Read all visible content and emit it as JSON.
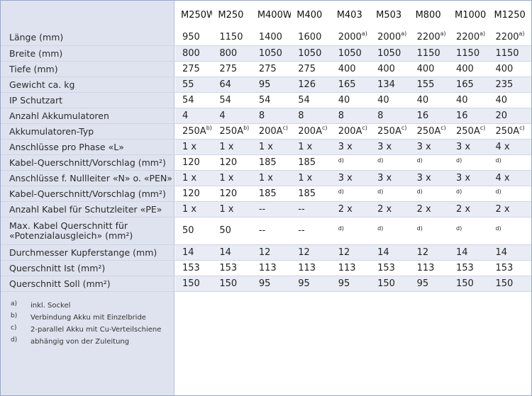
{
  "models": [
    "M250W",
    "M250",
    "M400W",
    "M400",
    "M403",
    "M503",
    "M800",
    "M1000",
    "M1250"
  ],
  "rows": [
    {
      "label": "Länge (mm)",
      "values": [
        "950",
        "1150",
        "1400",
        "1600",
        "2000",
        "2000",
        "2200",
        "2200",
        "2200"
      ],
      "sups": [
        "",
        "",
        "",
        "",
        "a)",
        "a)",
        "a)",
        "a)",
        "a)"
      ]
    },
    {
      "label": "Breite (mm)",
      "values": [
        "800",
        "800",
        "1050",
        "1050",
        "1050",
        "1050",
        "1150",
        "1150",
        "1150"
      ],
      "sups": [
        "",
        "",
        "",
        "",
        "",
        "",
        "",
        "",
        ""
      ]
    },
    {
      "label": "Tiefe (mm)",
      "values": [
        "275",
        "275",
        "275",
        "275",
        "400",
        "400",
        "400",
        "400",
        "400"
      ],
      "sups": [
        "",
        "",
        "",
        "",
        "",
        "",
        "",
        "",
        ""
      ]
    },
    {
      "label": "Gewicht ca. kg",
      "values": [
        "55",
        "64",
        "95",
        "126",
        "165",
        "134",
        "155",
        "165",
        "235"
      ],
      "sups": [
        "",
        "",
        "",
        "",
        "",
        "",
        "",
        "",
        ""
      ]
    },
    {
      "label": "IP Schutzart",
      "values": [
        "54",
        "54",
        "54",
        "54",
        "40",
        "40",
        "40",
        "40",
        "40"
      ],
      "sups": [
        "",
        "",
        "",
        "",
        "",
        "",
        "",
        "",
        ""
      ]
    },
    {
      "label": "Anzahl Akkumulatoren",
      "values": [
        "4",
        "4",
        "8",
        "8",
        "8",
        "8",
        "16",
        "16",
        "20"
      ],
      "sups": [
        "",
        "",
        "",
        "",
        "",
        "",
        "",
        "",
        ""
      ]
    },
    {
      "label": "Akkumulatoren-Typ",
      "values": [
        "250A",
        "250A",
        "200A",
        "200A",
        "200A",
        "250A",
        "250A",
        "250A",
        "250A"
      ],
      "sups": [
        "b)",
        "b)",
        "c)",
        "c)",
        "c)",
        "c)",
        "c)",
        "c)",
        "c)"
      ]
    },
    {
      "label": "Anschlüsse pro Phase «L»",
      "values": [
        "1 x",
        "1 x",
        "1 x",
        "1 x",
        "3 x",
        "3 x",
        "3 x",
        "3 x",
        "4 x"
      ],
      "sups": [
        "",
        "",
        "",
        "",
        "",
        "",
        "",
        "",
        ""
      ]
    },
    {
      "label": "Kabel-Querschnitt/Vorschlag (mm²)",
      "values": [
        "120",
        "120",
        "185",
        "185",
        "",
        "",
        "",
        "",
        ""
      ],
      "sups": [
        "",
        "",
        "",
        "",
        "d)",
        "d)",
        "d)",
        "d)",
        "d)"
      ]
    },
    {
      "label": "Anschlüsse f. Nullleiter «N» o. «PEN»",
      "values": [
        "1 x",
        "1 x",
        "1 x",
        "1 x",
        "3 x",
        "3 x",
        "3 x",
        "3 x",
        "4 x"
      ],
      "sups": [
        "",
        "",
        "",
        "",
        "",
        "",
        "",
        "",
        ""
      ]
    },
    {
      "label": "Kabel-Querschnitt/Vorschlag (mm²)",
      "values": [
        "120",
        "120",
        "185",
        "185",
        "",
        "",
        "",
        "",
        ""
      ],
      "sups": [
        "",
        "",
        "",
        "",
        "d)",
        "d)",
        "d)",
        "d)",
        "d)"
      ]
    },
    {
      "label": "Anzahl Kabel für Schutzleiter «PE»",
      "values": [
        "1 x",
        "1 x",
        "--",
        "--",
        "2 x",
        "2 x",
        "2 x",
        "2 x",
        "2 x"
      ],
      "sups": [
        "",
        "",
        "",
        "",
        "",
        "",
        "",
        "",
        ""
      ]
    },
    {
      "label": "Max. Kabel Querschnitt für «Potenzialausgleich» (mm²)",
      "values": [
        "50",
        "50",
        "--",
        "--",
        "",
        "",
        "",
        "",
        ""
      ],
      "sups": [
        "",
        "",
        "",
        "",
        "d)",
        "d)",
        "d)",
        "d)",
        "d)"
      ]
    },
    {
      "label": "Durchmesser Kupferstange (mm)",
      "values": [
        "14",
        "14",
        "12",
        "12",
        "12",
        "14",
        "12",
        "14",
        "14"
      ],
      "sups": [
        "",
        "",
        "",
        "",
        "",
        "",
        "",
        "",
        ""
      ]
    },
    {
      "label": "Querschnitt Ist (mm²)",
      "values": [
        "153",
        "153",
        "113",
        "113",
        "113",
        "153",
        "113",
        "153",
        "153"
      ],
      "sups": [
        "",
        "",
        "",
        "",
        "",
        "",
        "",
        "",
        ""
      ]
    },
    {
      "label": "Querschnitt Soll (mm²)",
      "values": [
        "150",
        "150",
        "95",
        "95",
        "95",
        "150",
        "95",
        "150",
        "150"
      ],
      "sups": [
        "",
        "",
        "",
        "",
        "",
        "",
        "",
        "",
        ""
      ]
    }
  ],
  "footnotes": [
    {
      "key": "a)",
      "text": "inkl. Sockel"
    },
    {
      "key": "b)",
      "text": "Verbindung Akku mit Einzelbride"
    },
    {
      "key": "c)",
      "text": "2-parallel Akku mit Cu-Verteilschiene"
    },
    {
      "key": "d)",
      "text": "abhängig von der Zuleitung"
    }
  ],
  "colors": {
    "label_panel": "#dfe3ef",
    "alt_row": "#e9ecf4",
    "border": "#9aa6c4"
  }
}
